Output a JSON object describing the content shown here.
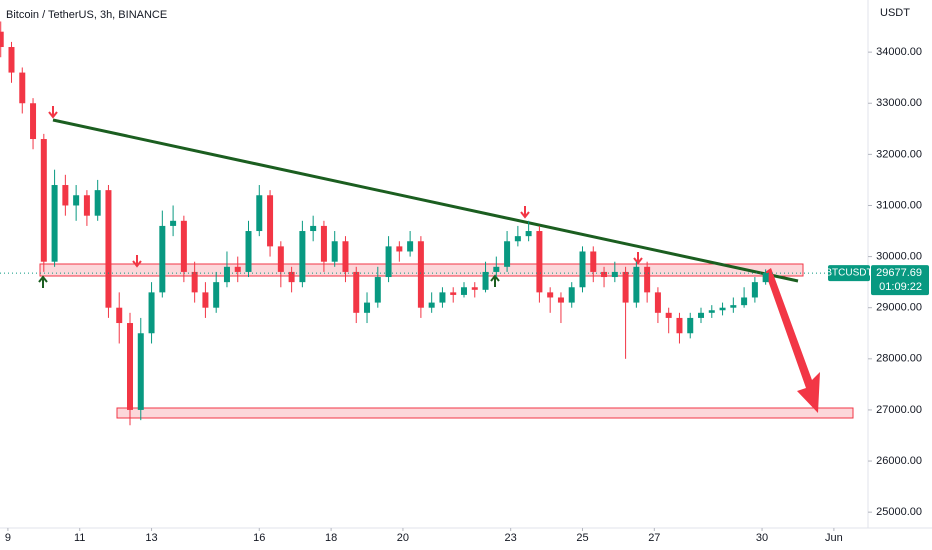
{
  "chart_data": {
    "type": "candlestick",
    "title": "Bitcoin / TetherUS, 3h, BINANCE",
    "y_axis_label": "USDT",
    "up_color": "#089981",
    "down_color": "#f23645",
    "grid": false,
    "xlim": [
      8.78,
      32.95
    ],
    "ylim": [
      24690,
      35020
    ],
    "xticks": [
      9,
      11,
      13,
      16,
      18,
      20,
      23,
      25,
      27,
      30,
      {
        "value": 32,
        "label": "Jun"
      }
    ],
    "yticks": [
      {
        "value": 25000,
        "label": "25000.00"
      },
      {
        "value": 26000,
        "label": "26000.00"
      },
      {
        "value": 27000,
        "label": "27000.00"
      },
      {
        "value": 28000,
        "label": "28000.00"
      },
      {
        "value": 29000,
        "label": "29000.00"
      },
      {
        "value": 30000,
        "label": "30000.00"
      },
      {
        "value": 31000,
        "label": "31000.00"
      },
      {
        "value": 32000,
        "label": "32000.00"
      },
      {
        "value": 33000,
        "label": "33000.00"
      },
      {
        "value": 34000,
        "label": "34000.00"
      }
    ],
    "x": [
      8.8,
      9.1,
      9.4,
      9.7,
      10.0,
      10.3,
      10.6,
      10.9,
      11.2,
      11.5,
      11.8,
      12.1,
      12.4,
      12.7,
      13.0,
      13.3,
      13.6,
      13.9,
      14.2,
      14.5,
      14.8,
      15.1,
      15.4,
      15.7,
      16.0,
      16.3,
      16.6,
      16.9,
      17.2,
      17.5,
      17.8,
      18.1,
      18.4,
      18.7,
      19.0,
      19.3,
      19.6,
      19.9,
      20.2,
      20.5,
      20.8,
      21.1,
      21.4,
      21.7,
      22.0,
      22.3,
      22.6,
      22.9,
      23.2,
      23.5,
      23.8,
      24.1,
      24.4,
      24.7,
      25.0,
      25.3,
      25.6,
      25.9,
      26.2,
      26.5,
      26.8,
      27.1,
      27.4,
      27.7,
      28.0,
      28.3,
      28.6,
      28.9,
      29.2,
      29.5,
      29.8,
      30.1
    ],
    "open": [
      34400,
      34100,
      33600,
      33000,
      32300,
      29900,
      31400,
      31000,
      31200,
      30800,
      31300,
      29000,
      28700,
      27000,
      28500,
      29300,
      30600,
      30700,
      29700,
      29300,
      29000,
      29500,
      29800,
      29700,
      30500,
      31200,
      30200,
      29700,
      29500,
      30500,
      30600,
      29900,
      30300,
      29700,
      28900,
      29100,
      29600,
      30200,
      30100,
      30300,
      29000,
      29100,
      29300,
      29250,
      29400,
      29350,
      29700,
      29800,
      30300,
      30400,
      30500,
      29300,
      29200,
      29100,
      29400,
      30100,
      29700,
      29600,
      29700,
      29100,
      29800,
      29300,
      28900,
      28800,
      28500,
      28800,
      28900,
      28950,
      29000,
      29050,
      29200,
      29500
    ],
    "high": [
      34600,
      34200,
      33700,
      33100,
      32400,
      31700,
      31600,
      31400,
      31300,
      31500,
      31400,
      29300,
      28900,
      28800,
      29500,
      30900,
      31000,
      30800,
      29900,
      29500,
      29700,
      30100,
      30000,
      30700,
      31400,
      31300,
      30300,
      29800,
      30700,
      30800,
      30700,
      30500,
      30400,
      29800,
      29300,
      29800,
      30400,
      30300,
      30500,
      30400,
      29300,
      29400,
      29400,
      29500,
      29500,
      29900,
      30000,
      30500,
      30600,
      30700,
      30600,
      29400,
      29300,
      29500,
      30200,
      30200,
      29800,
      29900,
      29800,
      29900,
      29900,
      29400,
      29000,
      28900,
      28900,
      29000,
      29050,
      29100,
      29200,
      29400,
      29600,
      29750
    ],
    "low": [
      33900,
      33400,
      32800,
      32100,
      29700,
      29800,
      30800,
      30700,
      30600,
      30700,
      28800,
      28300,
      26700,
      26800,
      28300,
      29200,
      30400,
      29500,
      29100,
      28800,
      28900,
      29400,
      29500,
      29600,
      30400,
      30000,
      29400,
      29300,
      29400,
      30300,
      29700,
      29800,
      29500,
      28700,
      28700,
      29000,
      29500,
      29900,
      30000,
      28800,
      28900,
      29000,
      29100,
      29200,
      29200,
      29300,
      29600,
      29700,
      30200,
      30300,
      29100,
      28900,
      28700,
      29000,
      29300,
      29500,
      29400,
      29500,
      28000,
      29000,
      29100,
      28700,
      28500,
      28300,
      28400,
      28700,
      28800,
      28850,
      28900,
      29000,
      29100,
      29450
    ],
    "close": [
      34100,
      33600,
      33000,
      32300,
      29900,
      31400,
      31000,
      31200,
      30800,
      31300,
      29000,
      28700,
      27000,
      28500,
      29300,
      30600,
      30700,
      29700,
      29300,
      29000,
      29500,
      29800,
      29700,
      30500,
      31200,
      30200,
      29700,
      29500,
      30500,
      30600,
      29900,
      30300,
      29700,
      28900,
      29100,
      29600,
      30200,
      30100,
      30300,
      29000,
      29100,
      29300,
      29250,
      29400,
      29350,
      29700,
      29800,
      30300,
      30400,
      30500,
      29300,
      29200,
      29100,
      29400,
      30100,
      29700,
      29600,
      29700,
      29100,
      29800,
      29300,
      28900,
      28800,
      28500,
      28800,
      28900,
      28950,
      29000,
      29050,
      29200,
      29500,
      29677.69
    ],
    "last_price": {
      "symbol": "BTCUSDT",
      "value": 29677.69,
      "value_label": "29677.69",
      "countdown": "01:09:22",
      "color": "#089981"
    }
  }
}
